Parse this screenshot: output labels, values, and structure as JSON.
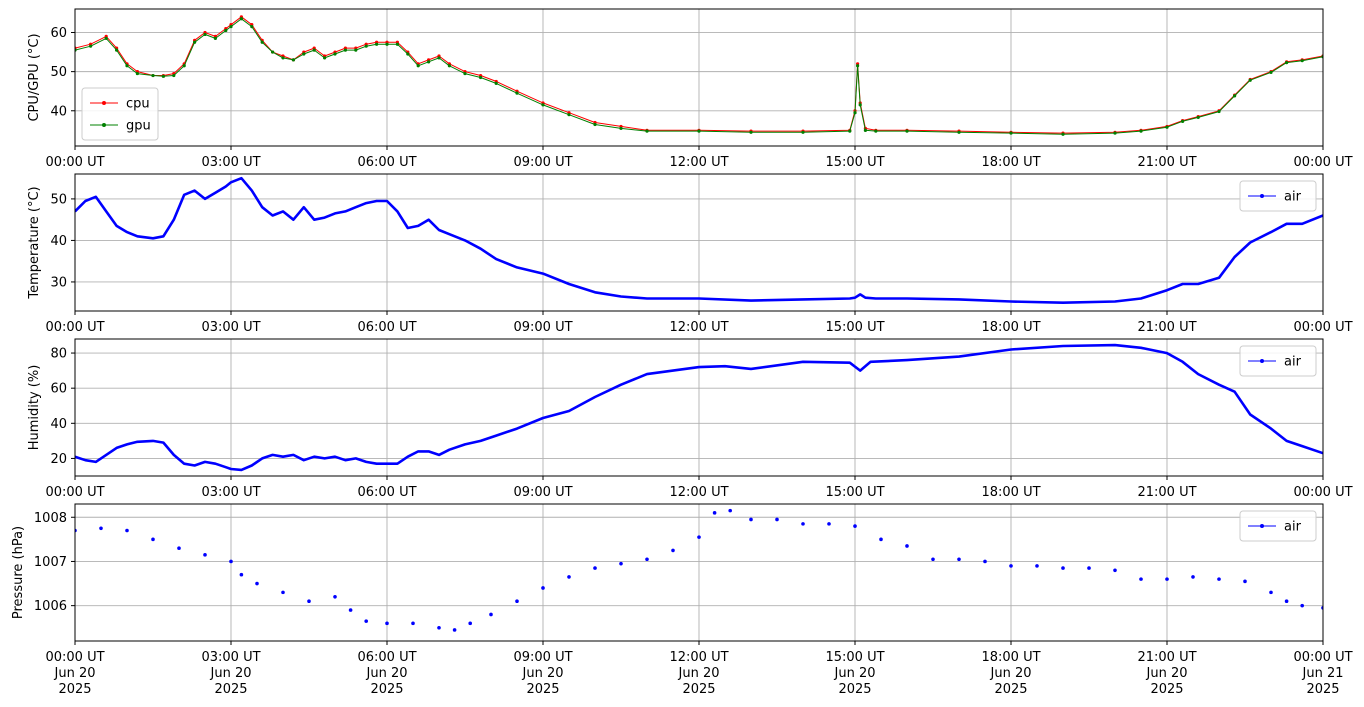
{
  "chart_data": [
    {
      "type": "line",
      "ylabel": "CPU/GPU (°C)",
      "ylim": [
        31,
        66
      ],
      "yticks": [
        40,
        50,
        60
      ],
      "xlim": [
        0,
        24
      ],
      "xticks": [
        0,
        3,
        6,
        9,
        12,
        15,
        18,
        21,
        24
      ],
      "xtick_labels": [
        "00:00 UT",
        "03:00 UT",
        "06:00 UT",
        "09:00 UT",
        "12:00 UT",
        "15:00 UT",
        "18:00 UT",
        "21:00 UT",
        "00:00 UT"
      ],
      "xunit": "hours UT since 2025-06-20 00:00",
      "grid": true,
      "legend": "lower-left",
      "series": [
        {
          "name": "cpu",
          "color": "#ff0000",
          "x": [
            0,
            0.3,
            0.6,
            0.8,
            1.0,
            1.2,
            1.5,
            1.7,
            1.9,
            2.1,
            2.3,
            2.5,
            2.7,
            2.9,
            3.0,
            3.2,
            3.4,
            3.6,
            3.8,
            4.0,
            4.2,
            4.4,
            4.6,
            4.8,
            5.0,
            5.2,
            5.4,
            5.6,
            5.8,
            6.0,
            6.2,
            6.4,
            6.6,
            6.8,
            7.0,
            7.2,
            7.5,
            7.8,
            8.1,
            8.5,
            9.0,
            9.5,
            10.0,
            10.5,
            11.0,
            12.0,
            13.0,
            14.0,
            14.9,
            15.0,
            15.05,
            15.1,
            15.2,
            15.4,
            16.0,
            17.0,
            18.0,
            19.0,
            20.0,
            20.5,
            21.0,
            21.3,
            21.6,
            22.0,
            22.3,
            22.6,
            23.0,
            23.3,
            23.6,
            24.0
          ],
          "y": [
            56,
            57,
            59,
            56,
            52,
            50,
            49,
            49,
            49.5,
            52,
            58,
            60,
            59,
            61,
            62,
            64,
            62,
            58,
            55,
            54,
            53,
            55,
            56,
            54,
            55,
            56,
            56,
            57,
            57.5,
            57.5,
            57.5,
            55,
            52,
            53,
            54,
            52,
            50,
            49,
            47.5,
            45,
            42,
            39.5,
            37,
            36,
            35,
            35,
            34.8,
            34.8,
            35,
            40,
            52,
            42,
            35.5,
            35,
            35,
            34.8,
            34.5,
            34.3,
            34.5,
            35,
            36,
            37.5,
            38.5,
            40,
            44,
            48,
            50,
            52.5,
            53,
            54
          ]
        },
        {
          "name": "gpu",
          "color": "#008000",
          "x": [
            0,
            0.3,
            0.6,
            0.8,
            1.0,
            1.2,
            1.5,
            1.7,
            1.9,
            2.1,
            2.3,
            2.5,
            2.7,
            2.9,
            3.0,
            3.2,
            3.4,
            3.6,
            3.8,
            4.0,
            4.2,
            4.4,
            4.6,
            4.8,
            5.0,
            5.2,
            5.4,
            5.6,
            5.8,
            6.0,
            6.2,
            6.4,
            6.6,
            6.8,
            7.0,
            7.2,
            7.5,
            7.8,
            8.1,
            8.5,
            9.0,
            9.5,
            10.0,
            10.5,
            11.0,
            12.0,
            13.0,
            14.0,
            14.9,
            15.0,
            15.05,
            15.1,
            15.2,
            15.4,
            16.0,
            17.0,
            18.0,
            19.0,
            20.0,
            20.5,
            21.0,
            21.3,
            21.6,
            22.0,
            22.3,
            22.6,
            23.0,
            23.3,
            23.6,
            24.0
          ],
          "y": [
            55.5,
            56.5,
            58.5,
            55.5,
            51.5,
            49.5,
            49,
            48.8,
            49,
            51.5,
            57.5,
            59.5,
            58.5,
            60.5,
            61.5,
            63.5,
            61.5,
            57.5,
            55,
            53.5,
            53,
            54.5,
            55.5,
            53.5,
            54.5,
            55.5,
            55.5,
            56.5,
            57,
            57,
            57,
            54.5,
            51.5,
            52.5,
            53.5,
            51.5,
            49.5,
            48.5,
            47,
            44.5,
            41.5,
            39,
            36.5,
            35.5,
            34.8,
            34.8,
            34.5,
            34.5,
            34.8,
            39.5,
            51.5,
            41.5,
            35,
            34.8,
            34.8,
            34.5,
            34.3,
            34,
            34.3,
            34.8,
            35.8,
            37.3,
            38.3,
            39.8,
            43.8,
            47.8,
            49.8,
            52.3,
            52.8,
            53.8
          ]
        }
      ]
    },
    {
      "type": "line",
      "ylabel": "Temperature (°C)",
      "ylim": [
        23,
        56
      ],
      "yticks": [
        30,
        40,
        50
      ],
      "xlim": [
        0,
        24
      ],
      "xticks": [
        0,
        3,
        6,
        9,
        12,
        15,
        18,
        21,
        24
      ],
      "xtick_labels": [
        "00:00 UT",
        "03:00 UT",
        "06:00 UT",
        "09:00 UT",
        "12:00 UT",
        "15:00 UT",
        "18:00 UT",
        "21:00 UT",
        "00:00 UT"
      ],
      "grid": true,
      "legend": "upper-right",
      "series": [
        {
          "name": "air",
          "color": "#0000ff",
          "x": [
            0,
            0.2,
            0.4,
            0.6,
            0.8,
            1.0,
            1.2,
            1.5,
            1.7,
            1.9,
            2.1,
            2.3,
            2.5,
            2.7,
            2.9,
            3.0,
            3.2,
            3.4,
            3.6,
            3.8,
            4.0,
            4.2,
            4.4,
            4.6,
            4.8,
            5.0,
            5.2,
            5.4,
            5.6,
            5.8,
            6.0,
            6.2,
            6.4,
            6.6,
            6.8,
            7.0,
            7.2,
            7.5,
            7.8,
            8.1,
            8.5,
            9.0,
            9.5,
            10.0,
            10.5,
            11.0,
            12.0,
            13.0,
            14.0,
            14.9,
            15.0,
            15.1,
            15.2,
            15.4,
            16.0,
            17.0,
            18.0,
            19.0,
            20.0,
            20.5,
            21.0,
            21.3,
            21.6,
            22.0,
            22.3,
            22.6,
            23.0,
            23.3,
            23.6,
            24.0
          ],
          "y": [
            47,
            49.5,
            50.5,
            47,
            43.5,
            42,
            41,
            40.5,
            41,
            45,
            51,
            52,
            50,
            51.5,
            53,
            54,
            55,
            52,
            48,
            46,
            47,
            45,
            48,
            45,
            45.5,
            46.5,
            47,
            48,
            49,
            49.5,
            49.5,
            47,
            43,
            43.5,
            45,
            42.5,
            41.5,
            40,
            38,
            35.5,
            33.5,
            32,
            29.5,
            27.5,
            26.5,
            26,
            26,
            25.5,
            25.8,
            26,
            26.2,
            27,
            26.2,
            26,
            26,
            25.8,
            25.3,
            25,
            25.3,
            26,
            28,
            29.5,
            29.5,
            31,
            36,
            39.5,
            42,
            44,
            44,
            46
          ]
        }
      ]
    },
    {
      "type": "line",
      "ylabel": "Humidity (%)",
      "ylim": [
        10,
        88
      ],
      "yticks": [
        20,
        40,
        60,
        80
      ],
      "xlim": [
        0,
        24
      ],
      "xticks": [
        0,
        3,
        6,
        9,
        12,
        15,
        18,
        21,
        24
      ],
      "xtick_labels": [
        "00:00 UT",
        "03:00 UT",
        "06:00 UT",
        "09:00 UT",
        "12:00 UT",
        "15:00 UT",
        "18:00 UT",
        "21:00 UT",
        "00:00 UT"
      ],
      "grid": true,
      "legend": "upper-right",
      "series": [
        {
          "name": "air",
          "color": "#0000ff",
          "x": [
            0,
            0.2,
            0.4,
            0.6,
            0.8,
            1.0,
            1.2,
            1.5,
            1.7,
            1.9,
            2.1,
            2.3,
            2.5,
            2.7,
            2.9,
            3.0,
            3.2,
            3.4,
            3.6,
            3.8,
            4.0,
            4.2,
            4.4,
            4.6,
            4.8,
            5.0,
            5.2,
            5.4,
            5.6,
            5.8,
            6.0,
            6.2,
            6.4,
            6.6,
            6.8,
            7.0,
            7.2,
            7.5,
            7.8,
            8.1,
            8.5,
            9.0,
            9.5,
            10.0,
            10.5,
            11.0,
            12.0,
            12.5,
            13.0,
            14.0,
            14.9,
            15.1,
            15.3,
            16.0,
            17.0,
            18.0,
            19.0,
            20.0,
            20.5,
            21.0,
            21.3,
            21.6,
            22.0,
            22.3,
            22.6,
            23.0,
            23.3,
            23.6,
            24.0
          ],
          "y": [
            21,
            19,
            18,
            22,
            26,
            28,
            29.5,
            30,
            29,
            22,
            17,
            16,
            18,
            17,
            15,
            14,
            13.5,
            16,
            20,
            22,
            21,
            22,
            19,
            21,
            20,
            21,
            19,
            20,
            18,
            17,
            17,
            17,
            21,
            24,
            24,
            22,
            25,
            28,
            30,
            33,
            37,
            43,
            47,
            55,
            62,
            68,
            72,
            72.5,
            71,
            75,
            74.5,
            70,
            75,
            76,
            78,
            82,
            84,
            84.5,
            83,
            80,
            75,
            68,
            62,
            58,
            45,
            37,
            30,
            27,
            23
          ]
        }
      ]
    },
    {
      "type": "scatter",
      "ylabel": "Pressure (hPa)",
      "ylim": [
        1005.2,
        1008.3
      ],
      "yticks": [
        1006,
        1007,
        1008
      ],
      "xlim": [
        0,
        24
      ],
      "xticks": [
        0,
        3,
        6,
        9,
        12,
        15,
        18,
        21,
        24
      ],
      "xtick_labels": [
        [
          "00:00 UT",
          "Jun 20",
          "2025"
        ],
        [
          "03:00 UT",
          "Jun 20",
          "2025"
        ],
        [
          "06:00 UT",
          "Jun 20",
          "2025"
        ],
        [
          "09:00 UT",
          "Jun 20",
          "2025"
        ],
        [
          "12:00 UT",
          "Jun 20",
          "2025"
        ],
        [
          "15:00 UT",
          "Jun 20",
          "2025"
        ],
        [
          "18:00 UT",
          "Jun 20",
          "2025"
        ],
        [
          "21:00 UT",
          "Jun 20",
          "2025"
        ],
        [
          "00:00 UT",
          "Jun 21",
          "2025"
        ]
      ],
      "grid": true,
      "legend": "upper-right",
      "series": [
        {
          "name": "air",
          "color": "#0000ff",
          "x": [
            0,
            0.5,
            1.0,
            1.5,
            2.0,
            2.5,
            3.0,
            3.2,
            3.5,
            4.0,
            4.5,
            5.0,
            5.3,
            5.6,
            6.0,
            6.5,
            7.0,
            7.3,
            7.6,
            8.0,
            8.5,
            9.0,
            9.5,
            10.0,
            10.5,
            11.0,
            11.5,
            12.0,
            12.3,
            12.6,
            13.0,
            13.5,
            14.0,
            14.5,
            15.0,
            15.5,
            16.0,
            16.5,
            17.0,
            17.5,
            18.0,
            18.5,
            19.0,
            19.5,
            20.0,
            20.5,
            21.0,
            21.5,
            22.0,
            22.5,
            23.0,
            23.3,
            23.6,
            24.0
          ],
          "y": [
            1007.7,
            1007.75,
            1007.7,
            1007.5,
            1007.3,
            1007.15,
            1007.0,
            1006.7,
            1006.5,
            1006.3,
            1006.1,
            1006.2,
            1005.9,
            1005.65,
            1005.6,
            1005.6,
            1005.5,
            1005.45,
            1005.6,
            1005.8,
            1006.1,
            1006.4,
            1006.65,
            1006.85,
            1006.95,
            1007.05,
            1007.25,
            1007.55,
            1008.1,
            1008.15,
            1007.95,
            1007.95,
            1007.85,
            1007.85,
            1007.8,
            1007.5,
            1007.35,
            1007.05,
            1007.05,
            1007.0,
            1006.9,
            1006.9,
            1006.85,
            1006.85,
            1006.8,
            1006.6,
            1006.6,
            1006.65,
            1006.6,
            1006.55,
            1006.3,
            1006.1,
            1006.0,
            1005.95
          ]
        }
      ]
    }
  ]
}
